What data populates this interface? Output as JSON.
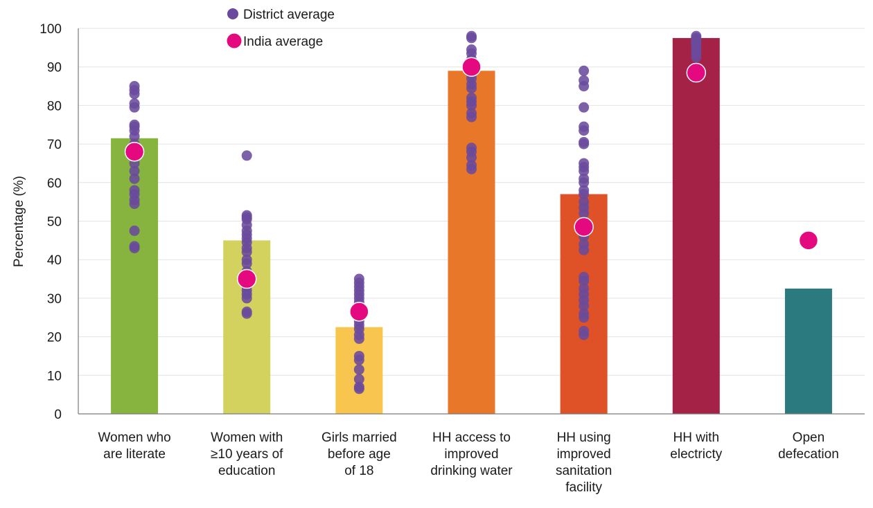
{
  "chart_data": {
    "type": "bar",
    "ylabel": "Percentage (%)",
    "ylim": [
      0,
      100
    ],
    "yticks": [
      0,
      10,
      20,
      30,
      40,
      50,
      60,
      70,
      80,
      90,
      100
    ],
    "grid": true,
    "legend_position": "top",
    "categories": [
      [
        "Women who",
        "are literate"
      ],
      [
        "Women with",
        "≥10 years of",
        "education"
      ],
      [
        "Girls married",
        "before age",
        "of 18"
      ],
      [
        "HH access to",
        "improved",
        "drinking water"
      ],
      [
        "HH using",
        "improved",
        "sanitation",
        "facility"
      ],
      [
        "HH with",
        "electricty"
      ],
      [
        "Open",
        "defecation"
      ]
    ],
    "bar_colors": [
      "#86b43f",
      "#d4d25f",
      "#f8c54f",
      "#e97729",
      "#df5127",
      "#a42245",
      "#2a7a80"
    ],
    "series": [
      {
        "type": "bar",
        "values": [
          71.5,
          45,
          22.5,
          89,
          57,
          97.5,
          32.5
        ]
      },
      {
        "name": "District average",
        "type": "scatter",
        "color": "#6a4a9c",
        "values": [
          [
            43,
            43.5,
            47.5,
            54.5,
            55.5,
            57,
            58,
            61,
            63,
            65,
            68,
            70,
            72,
            73.5,
            74.5,
            75,
            79.5,
            80.5,
            83,
            84,
            85
          ],
          [
            26,
            26.5,
            30,
            31,
            32,
            33,
            35.5,
            37,
            39,
            40,
            42,
            43,
            44.5,
            45.5,
            46.5,
            47.5,
            49,
            50.5,
            51,
            51.5,
            67
          ],
          [
            6.5,
            7,
            9,
            11.5,
            14,
            15,
            19.5,
            20.5,
            22,
            23,
            24,
            25,
            26,
            27.5,
            29,
            30,
            31,
            32,
            33,
            34,
            35
          ],
          [
            63.5,
            64.5,
            66.5,
            68,
            69,
            77,
            78,
            80,
            81,
            82,
            84.5,
            85.5,
            87,
            88,
            89.5,
            90.5,
            92,
            93.5,
            94.5,
            97.5,
            98
          ],
          [
            20.5,
            21.5,
            25,
            26,
            28,
            29.5,
            31,
            32.5,
            34.5,
            35.5,
            42.5,
            44,
            46,
            48,
            50,
            52,
            53.5,
            55,
            57,
            58,
            60,
            61,
            63,
            64,
            65,
            70,
            70.5,
            73.5,
            74.5,
            79.5,
            85,
            86.5,
            89
          ],
          [
            92.5,
            93.5,
            94.5,
            95.5,
            96,
            96.5,
            97,
            97.5,
            98
          ],
          []
        ]
      },
      {
        "name": "India average",
        "type": "scatter",
        "color": "#e5097f",
        "values": [
          68,
          35,
          26.5,
          90,
          48.5,
          88.5,
          45
        ]
      }
    ]
  }
}
